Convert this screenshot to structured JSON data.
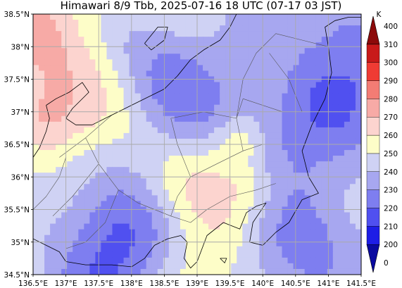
{
  "title": "Himawari 8/9 Tbb, 2025-07-16 18 UTC (07-17 03 JST)",
  "map": {
    "lon_range": [
      136.5,
      141.5
    ],
    "lat_range": [
      34.5,
      38.5
    ],
    "gridlines": true,
    "lon_ticks": [
      "136.5°E",
      "137°E",
      "137.5°E",
      "138°E",
      "138.5°E",
      "139°E",
      "139.5°E",
      "140°E",
      "140.5°E",
      "141°E",
      "141.5°E"
    ],
    "lat_ticks": [
      "34.5°N",
      "35°N",
      "35.5°N",
      "36°N",
      "36.5°N",
      "37°N",
      "37.5°N",
      "38°N",
      "38.5°N"
    ]
  },
  "colorbar": {
    "unit": "K",
    "levels": [
      0,
      200,
      210,
      220,
      230,
      240,
      250,
      260,
      270,
      280,
      290,
      300,
      310,
      400
    ],
    "colors": [
      "#0a0aa0",
      "#1e1ee6",
      "#5050f0",
      "#7e7ef0",
      "#a7a7f0",
      "#cfd2f4",
      "#fdfdc8",
      "#fcd4cf",
      "#f7aaa6",
      "#f37c74",
      "#ef3b34",
      "#c81a1a",
      "#8c0a0a"
    ],
    "extend": "min"
  },
  "field_colors": {
    "coast": "#000000",
    "border": "#555555",
    "grid": "#aaaaaa"
  }
}
